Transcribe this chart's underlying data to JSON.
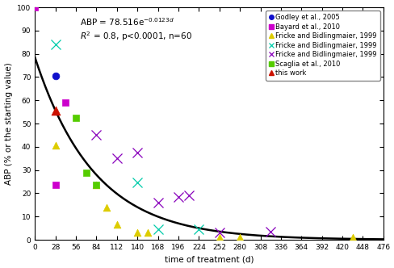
{
  "a": 78.516,
  "k": 0.0123,
  "xlabel": "time of treatment (d)",
  "ylabel": "ABP (% or the starting value)",
  "xlim": [
    0,
    476
  ],
  "ylim": [
    0,
    100
  ],
  "xticks": [
    0,
    28,
    56,
    84,
    112,
    140,
    168,
    196,
    224,
    252,
    280,
    308,
    336,
    364,
    392,
    420,
    448,
    476
  ],
  "yticks": [
    0,
    10,
    20,
    30,
    40,
    50,
    60,
    70,
    80,
    90,
    100
  ],
  "series": [
    {
      "label": "Godley et al., 2005",
      "marker": "o",
      "color": "#1010CC",
      "markersize": 4,
      "filled": true,
      "data": [
        [
          28,
          70.5
        ]
      ]
    },
    {
      "label": "Bayard et al., 2010",
      "marker": "s",
      "color": "#CC00CC",
      "markersize": 4,
      "filled": true,
      "data": [
        [
          0,
          100
        ],
        [
          28,
          23.5
        ],
        [
          42,
          59.0
        ]
      ]
    },
    {
      "label": "Fricke and Bidlingmaier, 1999",
      "marker": "^",
      "color": "#DDCC00",
      "markersize": 4,
      "filled": true,
      "data": [
        [
          28,
          40.5
        ],
        [
          84,
          23.5
        ],
        [
          98,
          14.0
        ],
        [
          112,
          6.5
        ],
        [
          140,
          3.0
        ],
        [
          154,
          3.0
        ],
        [
          252,
          1.0
        ],
        [
          280,
          1.0
        ],
        [
          434,
          1.0
        ]
      ]
    },
    {
      "label": "Fricke and Bidlingmaier, 1999",
      "marker": "x",
      "color": "#00CCAA",
      "markersize": 5,
      "filled": false,
      "data": [
        [
          28,
          84.0
        ],
        [
          140,
          24.5
        ],
        [
          168,
          4.5
        ],
        [
          224,
          4.5
        ]
      ]
    },
    {
      "label": "Fricke and Bidlingmaier, 1999",
      "marker": "x",
      "color": "#8800BB",
      "markersize": 5,
      "filled": false,
      "data": [
        [
          84,
          45.0
        ],
        [
          112,
          35.0
        ],
        [
          140,
          37.5
        ],
        [
          168,
          16.0
        ],
        [
          196,
          18.5
        ],
        [
          210,
          19.0
        ],
        [
          252,
          3.0
        ],
        [
          322,
          3.5
        ]
      ]
    },
    {
      "label": "Scaglia et al., 2010",
      "marker": "s",
      "color": "#55CC00",
      "markersize": 4,
      "filled": true,
      "data": [
        [
          56,
          52.5
        ],
        [
          70,
          29.0
        ],
        [
          84,
          23.5
        ]
      ]
    },
    {
      "label": "this work",
      "marker": "^",
      "color": "#CC1100",
      "markersize": 5,
      "filled": true,
      "data": [
        [
          28,
          55.5
        ]
      ]
    }
  ],
  "curve_color": "black",
  "curve_lw": 1.8,
  "background": "white",
  "tick_fontsize": 6.5,
  "label_fontsize": 7.5,
  "legend_fontsize": 6.0,
  "annot_fontsize": 7.5
}
